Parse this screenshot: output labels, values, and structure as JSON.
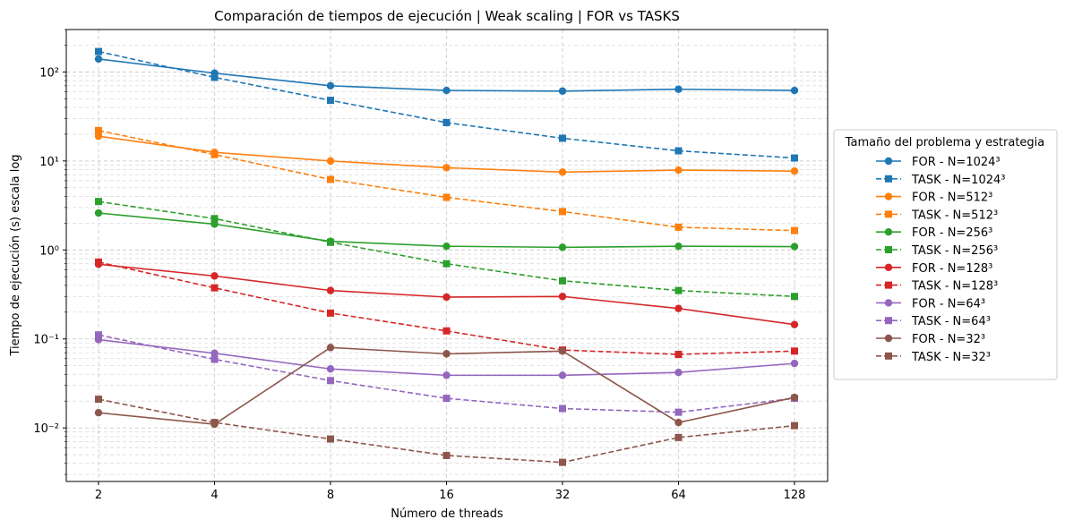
{
  "chart_data": {
    "type": "line",
    "title": "Comparación de tiempos de ejecución | Weak scaling | FOR vs TASKS",
    "xlabel": "Número de threads",
    "ylabel": "Tiempo de ejecución (s) escala log",
    "x": [
      2,
      4,
      8,
      16,
      32,
      64,
      128
    ],
    "x_tick_labels": [
      "2",
      "4",
      "8",
      "16",
      "32",
      "64",
      "128"
    ],
    "x_scale": "log2",
    "y_scale": "log",
    "ylim": [
      0.0025,
      300
    ],
    "y_tick_labels": [
      "10⁻²",
      "10⁻¹",
      "10⁰",
      "10¹",
      "10²"
    ],
    "grid": true,
    "legend": {
      "title": "Tamaño del problema y estrategia",
      "placement": "right, outside"
    },
    "series": [
      {
        "name": "FOR - N=1024³",
        "color": "#1f77b4",
        "style": "solid",
        "marker": "circle",
        "values": [
          140,
          97,
          70,
          62,
          61,
          64,
          62
        ]
      },
      {
        "name": "TASK - N=1024³",
        "color": "#1f77b4",
        "style": "dashed",
        "marker": "square",
        "values": [
          170,
          87,
          48,
          27,
          18,
          13,
          10.8
        ]
      },
      {
        "name": "FOR - N=512³",
        "color": "#ff7f0e",
        "style": "solid",
        "marker": "circle",
        "values": [
          19,
          12.5,
          10,
          8.4,
          7.5,
          7.9,
          7.7
        ]
      },
      {
        "name": "TASK - N=512³",
        "color": "#ff7f0e",
        "style": "dashed",
        "marker": "square",
        "values": [
          22,
          11.8,
          6.2,
          3.9,
          2.7,
          1.8,
          1.65
        ]
      },
      {
        "name": "FOR - N=256³",
        "color": "#2ca02c",
        "style": "solid",
        "marker": "circle",
        "values": [
          2.6,
          1.95,
          1.25,
          1.1,
          1.07,
          1.1,
          1.09
        ]
      },
      {
        "name": "TASK - N=256³",
        "color": "#2ca02c",
        "style": "dashed",
        "marker": "square",
        "values": [
          3.5,
          2.25,
          1.22,
          0.7,
          0.45,
          0.35,
          0.3
        ]
      },
      {
        "name": "FOR - N=128³",
        "color": "#d62728",
        "style": "solid",
        "marker": "circle",
        "values": [
          0.69,
          0.51,
          0.35,
          0.295,
          0.3,
          0.22,
          0.145
        ]
      },
      {
        "name": "TASK - N=128³",
        "color": "#d62728",
        "style": "dashed",
        "marker": "square",
        "values": [
          0.73,
          0.375,
          0.195,
          0.123,
          0.075,
          0.067,
          0.073
        ]
      },
      {
        "name": "FOR - N=64³",
        "color": "#9467bd",
        "style": "solid",
        "marker": "circle",
        "values": [
          0.098,
          0.069,
          0.046,
          0.039,
          0.039,
          0.042,
          0.053
        ]
      },
      {
        "name": "TASK - N=64³",
        "color": "#9467bd",
        "style": "dashed",
        "marker": "square",
        "values": [
          0.111,
          0.059,
          0.034,
          0.0215,
          0.0165,
          0.015,
          0.0215
        ]
      },
      {
        "name": "FOR - N=32³",
        "color": "#8c564b",
        "style": "solid",
        "marker": "circle",
        "values": [
          0.0148,
          0.011,
          0.08,
          0.068,
          0.073,
          0.0115,
          0.022
        ]
      },
      {
        "name": "TASK - N=32³",
        "color": "#8c564b",
        "style": "dashed",
        "marker": "square",
        "values": [
          0.021,
          0.0115,
          0.0075,
          0.0049,
          0.0041,
          0.0078,
          0.0106
        ]
      }
    ]
  }
}
